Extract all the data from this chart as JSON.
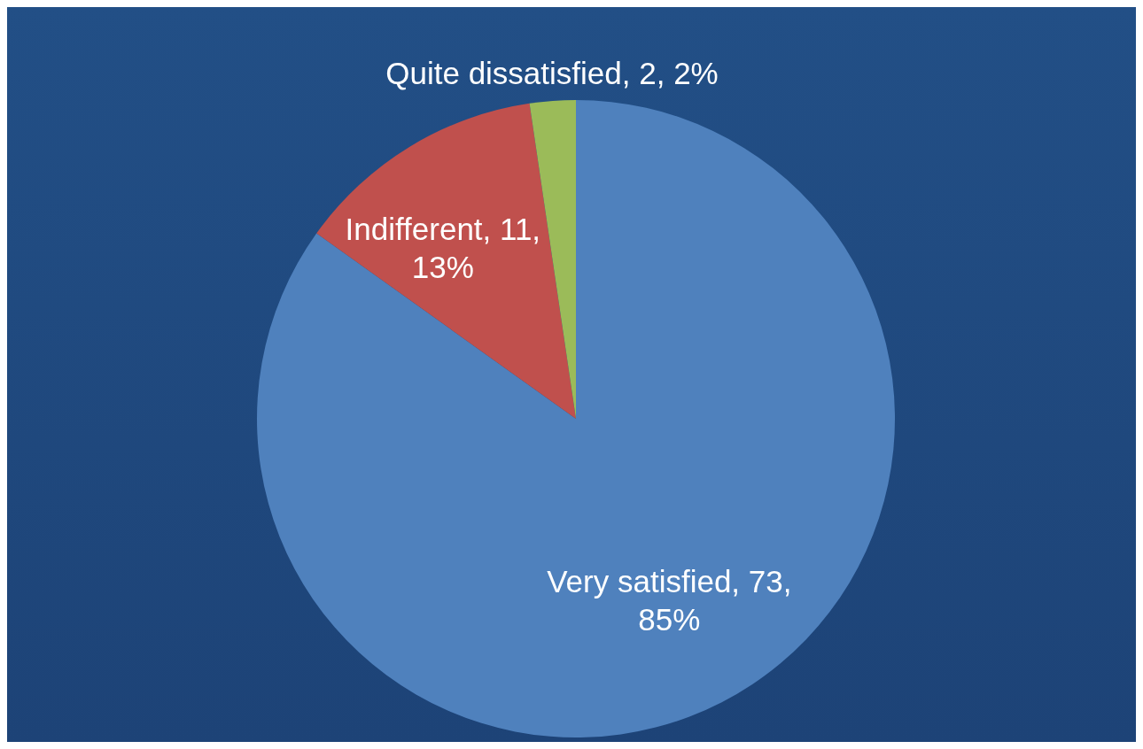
{
  "chart_data": {
    "type": "pie",
    "categories": [
      "Very satisfied",
      "Indifferent",
      "Quite dissatisfied"
    ],
    "values": [
      73,
      11,
      2
    ],
    "value_labels": [
      "73, 85%",
      "11, 13%",
      "2, 2%"
    ],
    "colors": [
      "#4f81bd",
      "#c0504d",
      "#9bbb59"
    ]
  }
}
